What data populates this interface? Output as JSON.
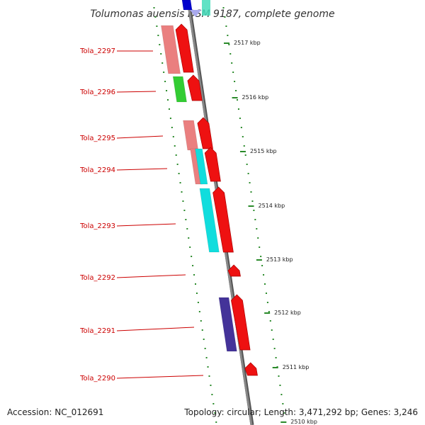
{
  "title": "Tolumonas auensis DSM 9187, complete genome",
  "footer": {
    "accession": "Accession: NC_012691",
    "summary": "Topology: circular; Length: 3,471,292 bp; Genes: 3,246"
  },
  "colors": {
    "backbone": "#888888",
    "tick": "#2a8a2a",
    "gene_label": "#cc0000",
    "forward_gene": "#ee1111",
    "pink_feature": "#ea7f7f",
    "green_feature": "#33cc33",
    "cyan_feature": "#11dddd",
    "navy_feature": "#443399",
    "blue_feature": "#0000cc",
    "lavender_feature": "#aaaaee"
  },
  "genes": [
    {
      "name": "Tola_2297"
    },
    {
      "name": "Tola_2296"
    },
    {
      "name": "Tola_2295"
    },
    {
      "name": "Tola_2294"
    },
    {
      "name": "Tola_2293"
    },
    {
      "name": "Tola_2292"
    },
    {
      "name": "Tola_2291"
    },
    {
      "name": "Tola_2290"
    }
  ],
  "kbp_ticks": [
    "2517 kbp",
    "2516 kbp",
    "2515 kbp",
    "2514 kbp",
    "2513 kbp",
    "2512 kbp",
    "2511 kbp",
    "2510 kbp"
  ]
}
